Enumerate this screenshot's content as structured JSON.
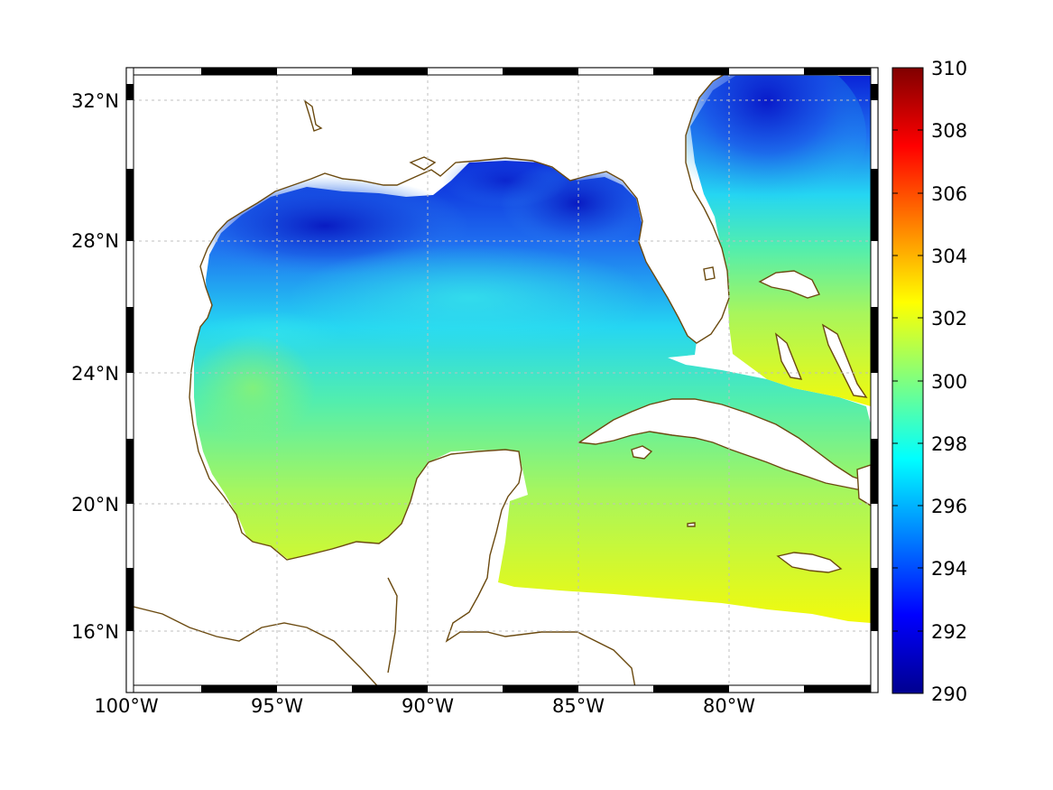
{
  "map": {
    "type": "heatmap",
    "region": "Gulf of Mexico and western Caribbean",
    "projection": "Mercator",
    "lon_range": [
      -100,
      -75
    ],
    "lat_range": [
      14,
      33
    ],
    "lat_ticks": [
      {
        "value": 32,
        "label": "32°N"
      },
      {
        "value": 28,
        "label": "28°N"
      },
      {
        "value": 24,
        "label": "24°N"
      },
      {
        "value": 20,
        "label": "20°N"
      },
      {
        "value": 16,
        "label": "16°N"
      }
    ],
    "lon_ticks": [
      {
        "value": -100,
        "label": "100°W"
      },
      {
        "value": -95,
        "label": "95°W"
      },
      {
        "value": -90,
        "label": "90°W"
      },
      {
        "value": -85,
        "label": "85°W"
      },
      {
        "value": -80,
        "label": "80°W"
      }
    ],
    "grid": true,
    "coastline_color": "#6b4a10",
    "land_fill": "#ffffff",
    "field_description": "sea surface temperature field; cold (~291-294) along northern Gulf shelf and Atlantic off Georgia/Carolinas, warm (~301-302) in southern Gulf and Caribbean"
  },
  "colorbar": {
    "min": 290,
    "max": 310,
    "colormap": "jet",
    "tick_labels": [
      "310",
      "308",
      "306",
      "304",
      "302",
      "300",
      "298",
      "296",
      "294",
      "292",
      "290"
    ]
  },
  "colors": {
    "cold": "#0a14c8",
    "cool": "#2a7ff0",
    "mid": "#20e4f0",
    "warm": "#5cf0a0",
    "hot": "#eaf810"
  }
}
